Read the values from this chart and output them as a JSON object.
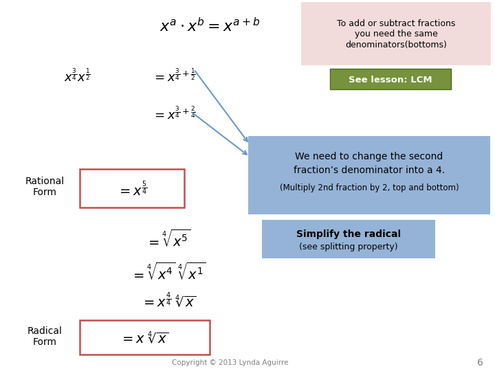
{
  "bg_color": "#ffffff",
  "title_box_color": "#f2dcdb",
  "title_text": "To add or subtract fractions\nyou need the same\ndenominators(bottoms)",
  "lcm_box_color": "#76923c",
  "lcm_text": "See lesson: LCM",
  "blue_box_color": "#95b3d7",
  "blue_box_line1": "We need to change the second",
  "blue_box_line2": "fraction’s denominator into a 4.",
  "blue_box_line3": "(Multiply 2nd fraction by 2, top and bottom)",
  "simplify_box_color": "#95b3d7",
  "simplify_line1": "Simplify the radical",
  "simplify_line2": "(see splitting property)",
  "red_box_color": "#c0504d",
  "copyright_text": "Copyright © 2013 Lynda Aguirre",
  "page_number": "6",
  "rational_label": "Rational\nForm",
  "radical_label": "Radical\nForm"
}
